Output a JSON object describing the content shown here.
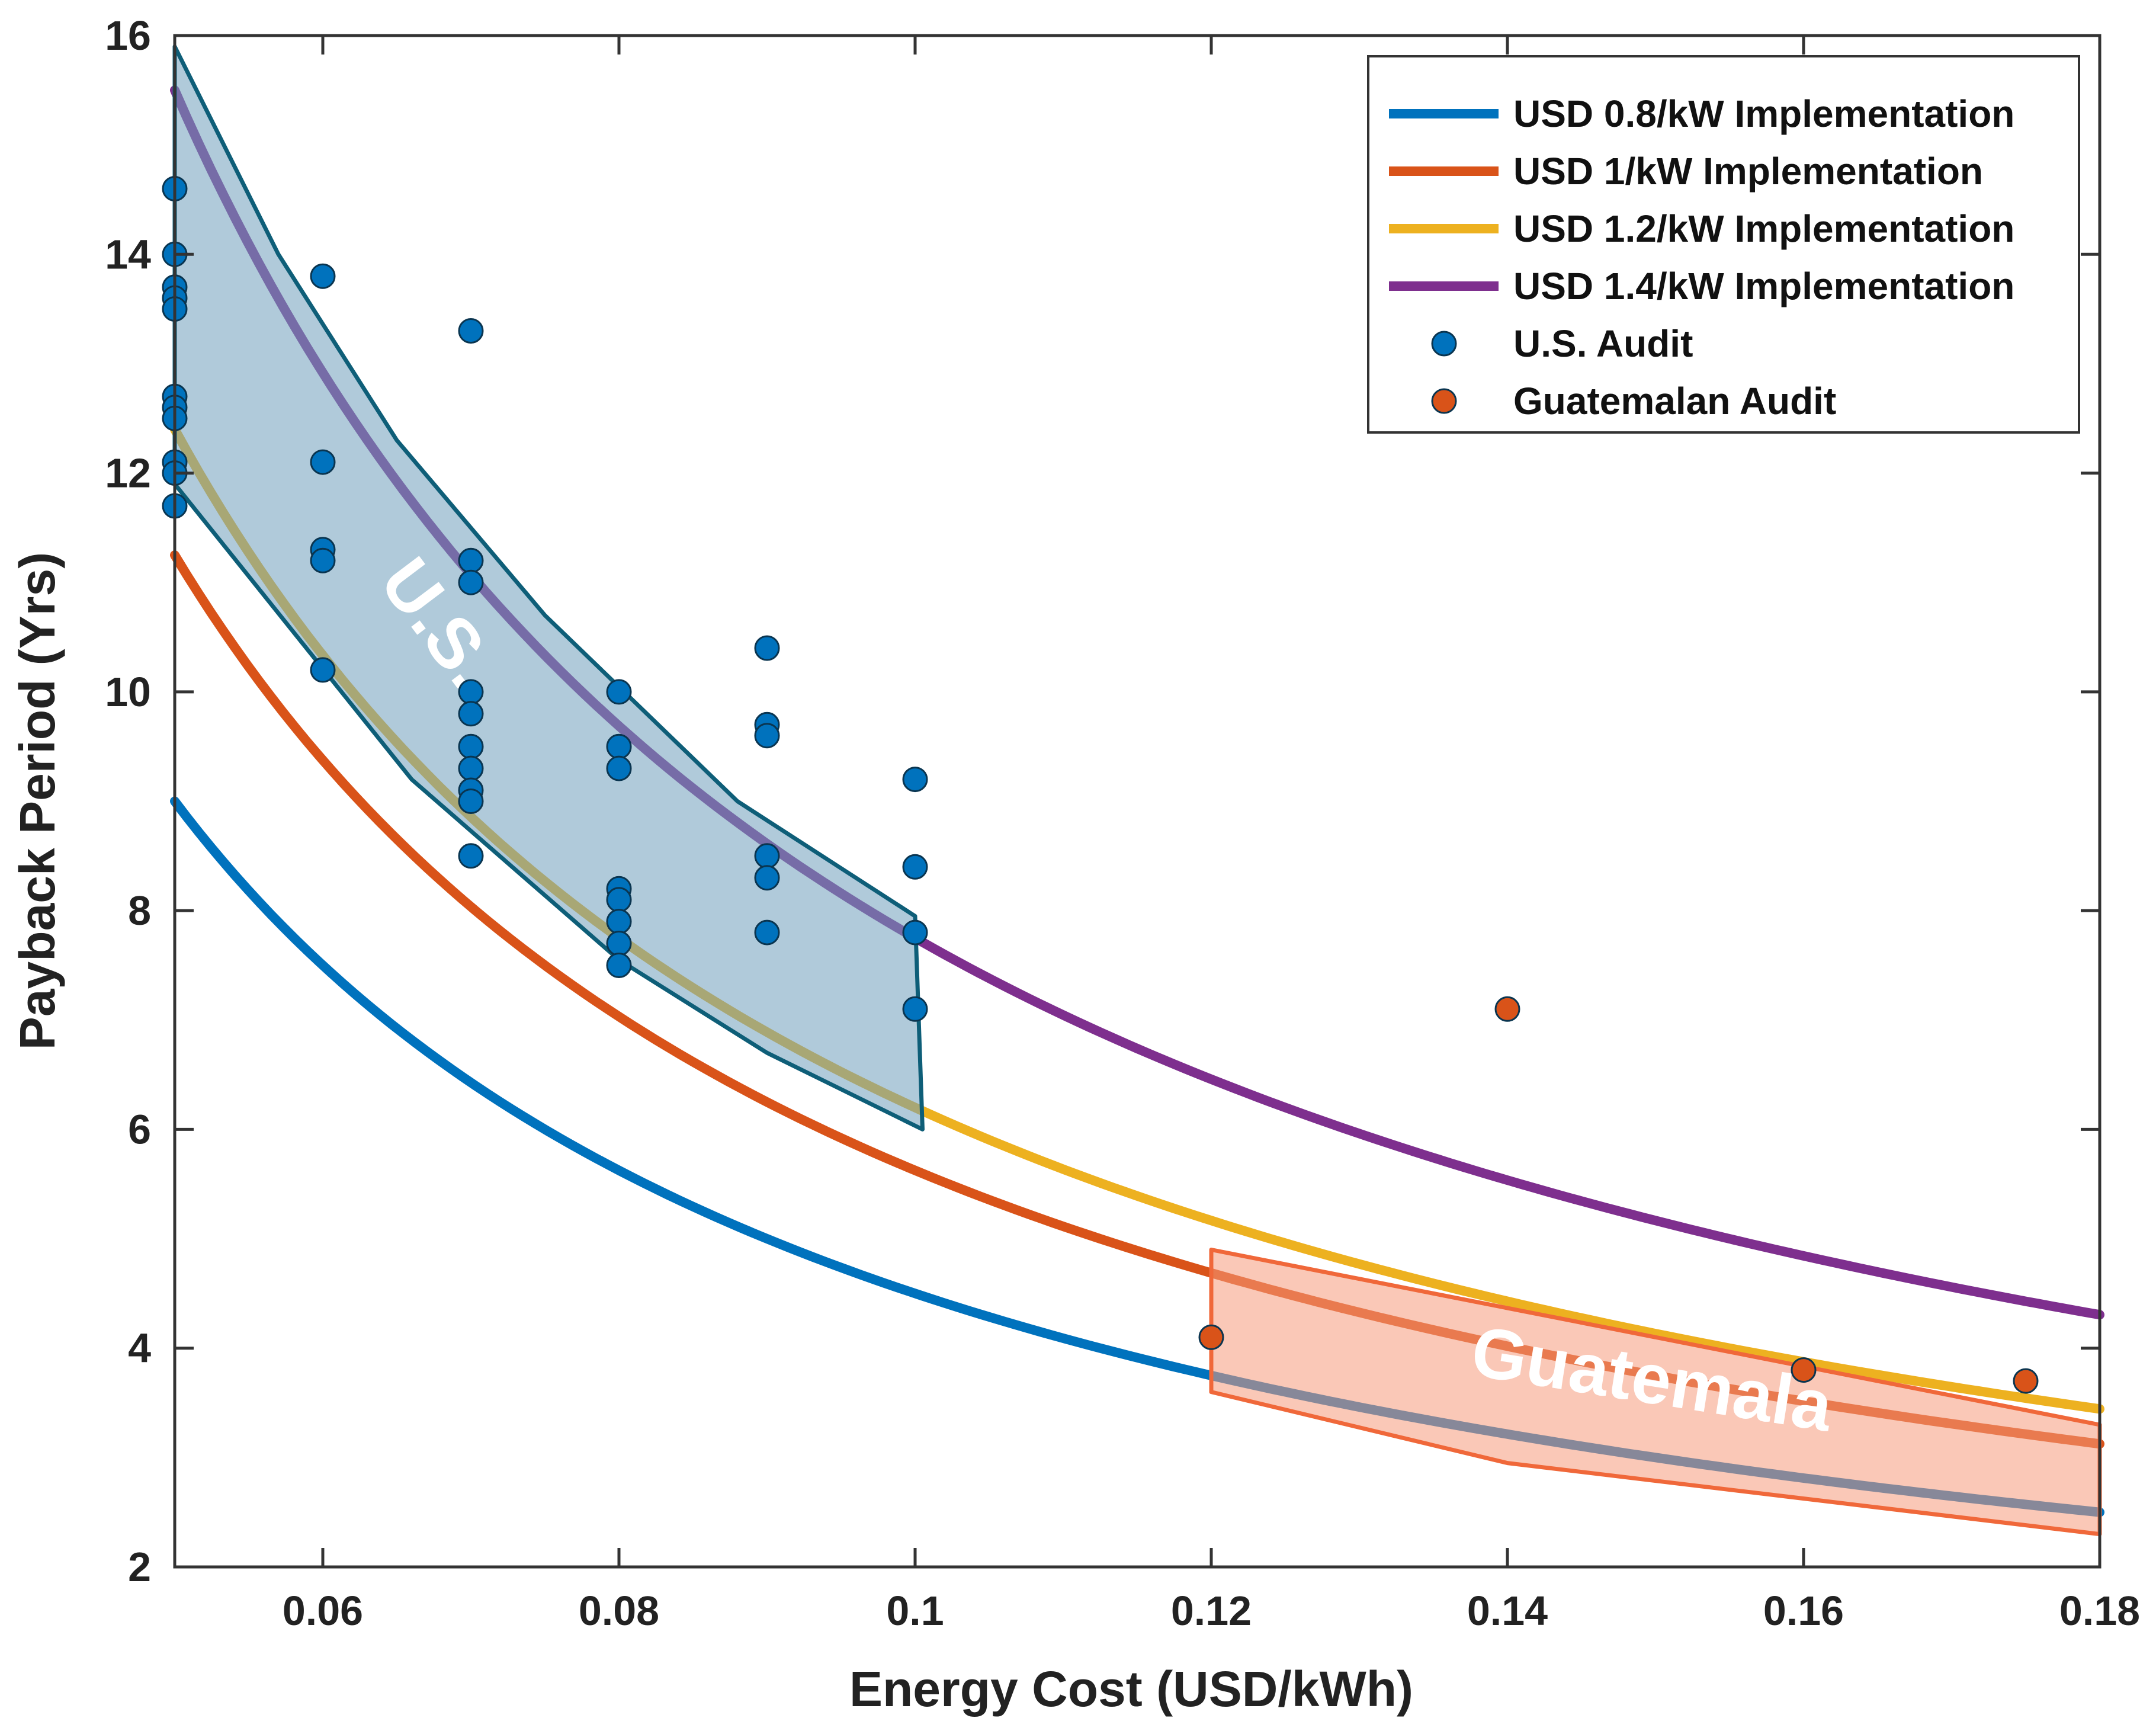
{
  "chart_data": {
    "type": "line",
    "title": "",
    "xlabel": "Energy Cost (USD/kWh)",
    "ylabel": "Payback Period (Yrs)",
    "xlim": [
      0.05,
      0.18
    ],
    "ylim": [
      2,
      16
    ],
    "grid": false,
    "legend_position": "top-right",
    "x_ticks": [
      0.06,
      0.08,
      0.1,
      0.12,
      0.14,
      0.16,
      0.18
    ],
    "x_tick_labels": [
      "0.06",
      "0.08",
      "0.1",
      "0.12",
      "0.14",
      "0.16",
      "0.18"
    ],
    "y_ticks": [
      2,
      4,
      6,
      8,
      10,
      12,
      14,
      16
    ],
    "y_tick_labels": [
      "2",
      "4",
      "6",
      "8",
      "10",
      "12",
      "14",
      "16"
    ],
    "curve_x_range": [
      0.05,
      0.18
    ],
    "series": [
      {
        "name": "USD 0.8/kW Implementation",
        "kind": "line",
        "color": "#0072bd",
        "k": 0.45
      },
      {
        "name": "USD 1/kW Implementation",
        "kind": "line",
        "color": "#d95319",
        "k": 0.5625
      },
      {
        "name": "USD 1.2/kW Implementation",
        "kind": "line",
        "color": "#edb120",
        "k": 0.62
      },
      {
        "name": "USD 1.4/kW Implementation",
        "kind": "line",
        "color": "#7e2f8e",
        "k": 0.775
      },
      {
        "name": "U.S. Audit",
        "kind": "scatter",
        "color": "#0072bd",
        "points": [
          [
            0.05,
            14.6
          ],
          [
            0.05,
            14.0
          ],
          [
            0.05,
            13.7
          ],
          [
            0.05,
            13.6
          ],
          [
            0.05,
            13.5
          ],
          [
            0.05,
            12.7
          ],
          [
            0.05,
            12.6
          ],
          [
            0.05,
            12.5
          ],
          [
            0.05,
            12.1
          ],
          [
            0.05,
            12.0
          ],
          [
            0.05,
            11.7
          ],
          [
            0.06,
            13.8
          ],
          [
            0.06,
            12.1
          ],
          [
            0.06,
            11.3
          ],
          [
            0.06,
            11.2
          ],
          [
            0.06,
            10.2
          ],
          [
            0.07,
            13.3
          ],
          [
            0.07,
            11.2
          ],
          [
            0.07,
            11.0
          ],
          [
            0.07,
            10.0
          ],
          [
            0.07,
            9.8
          ],
          [
            0.07,
            9.5
          ],
          [
            0.07,
            9.3
          ],
          [
            0.07,
            9.1
          ],
          [
            0.07,
            9.0
          ],
          [
            0.07,
            8.5
          ],
          [
            0.08,
            10.0
          ],
          [
            0.08,
            9.5
          ],
          [
            0.08,
            9.3
          ],
          [
            0.08,
            8.2
          ],
          [
            0.08,
            8.1
          ],
          [
            0.08,
            7.9
          ],
          [
            0.08,
            7.7
          ],
          [
            0.08,
            7.5
          ],
          [
            0.09,
            10.4
          ],
          [
            0.09,
            9.7
          ],
          [
            0.09,
            9.6
          ],
          [
            0.09,
            8.5
          ],
          [
            0.09,
            8.3
          ],
          [
            0.09,
            7.8
          ],
          [
            0.1,
            9.2
          ],
          [
            0.1,
            8.4
          ],
          [
            0.1,
            7.8
          ],
          [
            0.1,
            7.1
          ]
        ]
      },
      {
        "name": "Guatemalan Audit",
        "kind": "scatter",
        "color": "#d95319",
        "points": [
          [
            0.12,
            4.1
          ],
          [
            0.14,
            7.1
          ],
          [
            0.16,
            3.8
          ],
          [
            0.175,
            3.7
          ]
        ]
      }
    ],
    "regions": [
      {
        "label": "U.S.",
        "fill": "#6f9fbc",
        "stroke": "#0e5e78",
        "polygon": [
          [
            0.05,
            15.9
          ],
          [
            0.057,
            14.0
          ],
          [
            0.065,
            12.3
          ],
          [
            0.075,
            10.7
          ],
          [
            0.088,
            9.0
          ],
          [
            0.1,
            7.95
          ],
          [
            0.1005,
            6.0
          ],
          [
            0.09,
            6.7
          ],
          [
            0.08,
            7.55
          ],
          [
            0.066,
            9.2
          ],
          [
            0.05,
            11.9
          ]
        ]
      },
      {
        "label": "Guatemala",
        "fill": "#f59a7b",
        "stroke": "#f0683a",
        "polygon": [
          [
            0.12,
            4.9
          ],
          [
            0.18,
            3.3
          ],
          [
            0.18,
            2.3
          ],
          [
            0.14,
            2.95
          ],
          [
            0.12,
            3.6
          ]
        ]
      }
    ]
  }
}
